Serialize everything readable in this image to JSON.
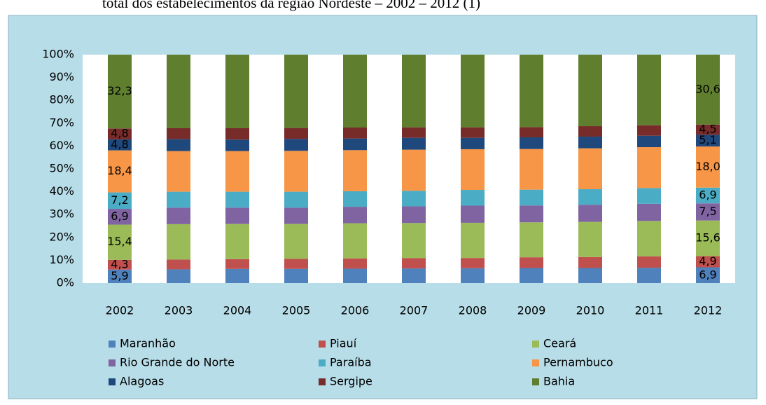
{
  "chart_data": {
    "type": "stacked_bar_100",
    "title": "total dos estabelecimentos da região Nordeste – 2002 – 2012 (1)",
    "categories": [
      "2002",
      "2003",
      "2004",
      "2005",
      "2006",
      "2007",
      "2008",
      "2009",
      "2010",
      "2011",
      "2012"
    ],
    "series": [
      {
        "name": "Maranhão",
        "color": "#4f81bd",
        "values": [
          5.9,
          6.0,
          6.2,
          6.2,
          6.3,
          6.4,
          6.5,
          6.6,
          6.6,
          6.7,
          6.9
        ],
        "value_labels": [
          "5,9",
          null,
          null,
          null,
          null,
          null,
          null,
          null,
          null,
          null,
          "6,9"
        ]
      },
      {
        "name": "Piauí",
        "color": "#c0504d",
        "values": [
          4.3,
          4.3,
          4.3,
          4.4,
          4.5,
          4.5,
          4.5,
          4.7,
          4.8,
          5.0,
          4.9
        ],
        "value_labels": [
          "4,3",
          null,
          null,
          null,
          null,
          null,
          null,
          null,
          null,
          null,
          "4,9"
        ]
      },
      {
        "name": "Ceará",
        "color": "#9bbb59",
        "values": [
          15.4,
          15.5,
          15.4,
          15.3,
          15.4,
          15.4,
          15.4,
          15.3,
          15.4,
          15.5,
          15.6
        ],
        "value_labels": [
          "15,4",
          null,
          null,
          null,
          null,
          null,
          null,
          null,
          null,
          null,
          "15,6"
        ]
      },
      {
        "name": "Rio Grande do Norte",
        "color": "#8064a2",
        "values": [
          6.9,
          7.2,
          7.1,
          7.1,
          7.2,
          7.3,
          7.5,
          7.4,
          7.5,
          7.5,
          7.5
        ],
        "value_labels": [
          "6,9",
          null,
          null,
          null,
          null,
          null,
          null,
          null,
          null,
          null,
          "7,5"
        ]
      },
      {
        "name": "Paraíba",
        "color": "#4bacc6",
        "values": [
          7.2,
          7.0,
          7.0,
          7.0,
          6.8,
          6.8,
          6.9,
          6.9,
          6.8,
          6.9,
          6.9
        ],
        "value_labels": [
          "7,2",
          null,
          null,
          null,
          null,
          null,
          null,
          null,
          null,
          null,
          "6,9"
        ]
      },
      {
        "name": "Pernambuco",
        "color": "#f79646",
        "values": [
          18.4,
          17.8,
          17.8,
          17.9,
          18.0,
          18.0,
          17.8,
          17.8,
          17.9,
          17.9,
          18.0
        ],
        "value_labels": [
          "18,4",
          null,
          null,
          null,
          null,
          null,
          null,
          null,
          null,
          null,
          "18,0"
        ]
      },
      {
        "name": "Alagoas",
        "color": "#1f497d",
        "values": [
          4.8,
          5.2,
          5.0,
          5.2,
          5.1,
          5.2,
          5.0,
          5.1,
          5.1,
          5.0,
          5.1
        ],
        "value_labels": [
          "4,8",
          null,
          null,
          null,
          null,
          null,
          null,
          null,
          null,
          null,
          "5,1"
        ]
      },
      {
        "name": "Sergipe",
        "color": "#772c2a",
        "values": [
          4.8,
          4.8,
          5.0,
          4.8,
          4.8,
          4.6,
          4.6,
          4.5,
          4.6,
          4.6,
          4.5
        ],
        "value_labels": [
          "4,8",
          null,
          null,
          null,
          null,
          null,
          null,
          null,
          null,
          null,
          "4,5"
        ]
      },
      {
        "name": "Bahia",
        "color": "#5f7f2f",
        "values": [
          32.3,
          32.2,
          32.2,
          32.1,
          31.9,
          31.8,
          31.8,
          31.7,
          31.3,
          30.9,
          30.6
        ],
        "value_labels": [
          "32,3",
          null,
          null,
          null,
          null,
          null,
          null,
          null,
          null,
          null,
          "30,6"
        ]
      }
    ],
    "ylim": [
      0,
      100
    ],
    "yticks": [
      {
        "value": 0,
        "label": "0%"
      },
      {
        "value": 10,
        "label": "10%"
      },
      {
        "value": 20,
        "label": "20%"
      },
      {
        "value": 30,
        "label": "30%"
      },
      {
        "value": 40,
        "label": "40%"
      },
      {
        "value": 50,
        "label": "50%"
      },
      {
        "value": 60,
        "label": "60%"
      },
      {
        "value": 70,
        "label": "70%"
      },
      {
        "value": 80,
        "label": "80%"
      },
      {
        "value": 90,
        "label": "90%"
      },
      {
        "value": 100,
        "label": "100%"
      }
    ],
    "legend": "bottom",
    "grid": false
  }
}
